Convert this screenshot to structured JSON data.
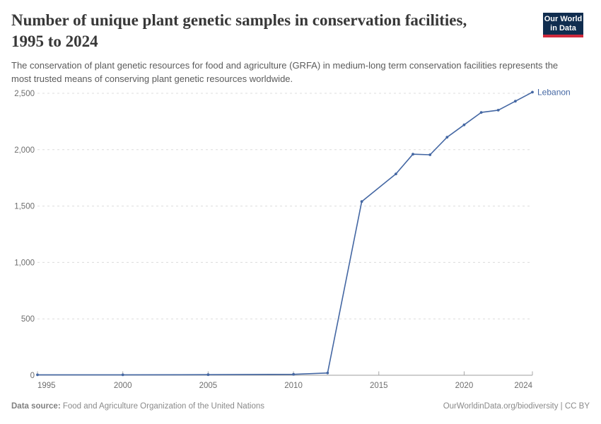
{
  "header": {
    "title_line1": "Number of unique plant genetic samples in conservation facilities,",
    "title_line2": "1995 to 2024",
    "subtitle": "The conservation of plant genetic resources for food and agriculture (GRFA) in medium-long term conservation facilities represents the most trusted means of conserving plant genetic resources worldwide.",
    "logo": {
      "line1": "Our World",
      "line2": "in Data",
      "bg_color": "#102d4f",
      "accent_color": "#d0293c"
    }
  },
  "chart_data": {
    "type": "line",
    "title": "Number of unique plant genetic samples in conservation facilities, 1995 to 2024",
    "grid": "horizontal-dashed",
    "legend_position": "end-of-line-label",
    "x": {
      "label": "",
      "range": [
        1995,
        2024
      ],
      "ticks": [
        1995,
        2000,
        2005,
        2010,
        2015,
        2020,
        2024
      ],
      "tick_labels": [
        "1995",
        "2000",
        "2005",
        "2010",
        "2015",
        "2020",
        "2024"
      ]
    },
    "y": {
      "label": "",
      "range": [
        0,
        2500
      ],
      "ticks": [
        0,
        500,
        1000,
        1500,
        2000,
        2500
      ],
      "tick_labels": [
        "0",
        "500",
        "1,000",
        "1,500",
        "2,000",
        "2,500"
      ]
    },
    "series": [
      {
        "name": "Lebanon",
        "color": "#4467a3",
        "points": [
          [
            1995,
            4
          ],
          [
            2000,
            4
          ],
          [
            2005,
            5
          ],
          [
            2010,
            8
          ],
          [
            2012,
            20
          ],
          [
            2014,
            1540
          ],
          [
            2016,
            1785
          ],
          [
            2017,
            1960
          ],
          [
            2018,
            1955
          ],
          [
            2019,
            2110
          ],
          [
            2020,
            2220
          ],
          [
            2021,
            2330
          ],
          [
            2022,
            2350
          ],
          [
            2023,
            2430
          ],
          [
            2024,
            2510
          ]
        ]
      }
    ]
  },
  "footer": {
    "source_label": "Data source:",
    "source_text": " Food and Agriculture Organization of the United Nations",
    "attribution": "OurWorldinData.org/biodiversity | CC BY"
  }
}
